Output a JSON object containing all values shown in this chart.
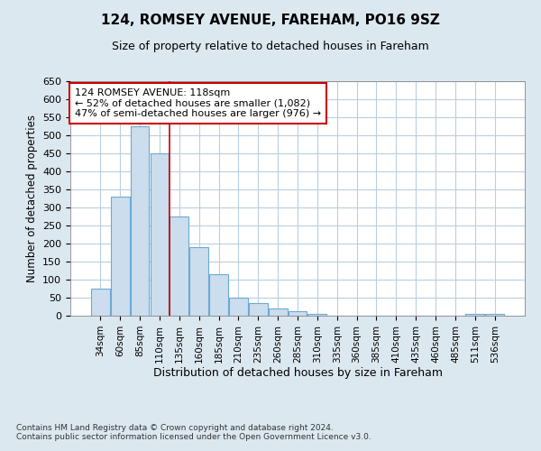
{
  "title1": "124, ROMSEY AVENUE, FAREHAM, PO16 9SZ",
  "title2": "Size of property relative to detached houses in Fareham",
  "xlabel": "Distribution of detached houses by size in Fareham",
  "ylabel": "Number of detached properties",
  "categories": [
    "34sqm",
    "60sqm",
    "85sqm",
    "110sqm",
    "135sqm",
    "160sqm",
    "185sqm",
    "210sqm",
    "235sqm",
    "260sqm",
    "285sqm",
    "310sqm",
    "335sqm",
    "360sqm",
    "385sqm",
    "410sqm",
    "435sqm",
    "460sqm",
    "485sqm",
    "511sqm",
    "536sqm"
  ],
  "values": [
    75,
    330,
    525,
    450,
    275,
    190,
    115,
    50,
    35,
    20,
    12,
    5,
    1,
    0,
    0,
    0,
    0,
    0,
    0,
    5,
    5
  ],
  "bar_color": "#ccdded",
  "bar_edge_color": "#6aaad4",
  "vline_x": 3.5,
  "vline_color": "#cc0000",
  "annotation_text": "124 ROMSEY AVENUE: 118sqm\n← 52% of detached houses are smaller (1,082)\n47% of semi-detached houses are larger (976) →",
  "annotation_box_facecolor": "#ffffff",
  "annotation_box_edgecolor": "#cc0000",
  "ylim": [
    0,
    650
  ],
  "yticks": [
    0,
    50,
    100,
    150,
    200,
    250,
    300,
    350,
    400,
    450,
    500,
    550,
    600,
    650
  ],
  "footnote": "Contains HM Land Registry data © Crown copyright and database right 2024.\nContains public sector information licensed under the Open Government Licence v3.0.",
  "bg_color": "#dce8f0",
  "plot_bg_color": "#ffffff",
  "grid_color": "#b8cfe0"
}
